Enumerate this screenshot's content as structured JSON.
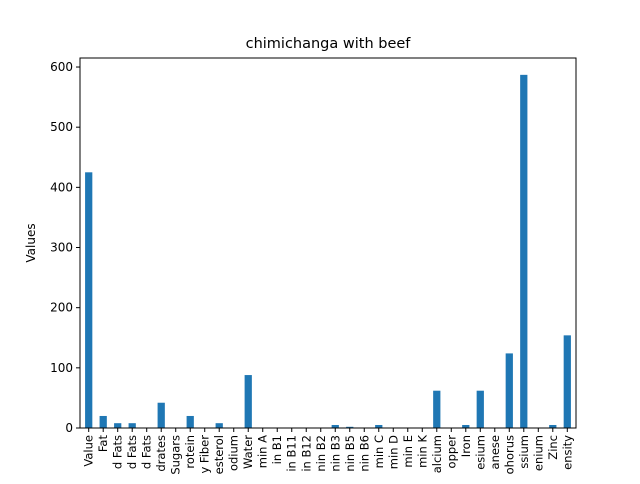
{
  "chart_data": {
    "type": "bar",
    "title": "chimichanga with beef",
    "xlabel": "",
    "ylabel": "Values",
    "ylim": [
      0,
      615
    ],
    "yticks": [
      0,
      100,
      200,
      300,
      400,
      500,
      600
    ],
    "grid": false,
    "legend": "none",
    "bar_color": "#1f77b4",
    "categories": [
      "Value",
      "Fat",
      "d Fats",
      "d Fats",
      "d Fats",
      "drates",
      "Sugars",
      "rotein",
      "y Fiber",
      "esterol",
      "odium",
      "Water",
      "min A",
      "in B1",
      "in B11",
      "in B12",
      "nin B2",
      "nin B3",
      "nin B5",
      "nin B6",
      "min C",
      "min D",
      "min E",
      "min K",
      "alcium",
      "opper",
      "Iron",
      "esium",
      "anese",
      "ohorus",
      "ssium",
      "enium",
      "Zinc",
      "ensity"
    ],
    "values": [
      425,
      20,
      8,
      8,
      0,
      42,
      0,
      20,
      0,
      8,
      0,
      88,
      0,
      0,
      0,
      0,
      0,
      5,
      2,
      0,
      5,
      0,
      0,
      0,
      62,
      0,
      5,
      62,
      0,
      124,
      587,
      0,
      5,
      154
    ]
  }
}
